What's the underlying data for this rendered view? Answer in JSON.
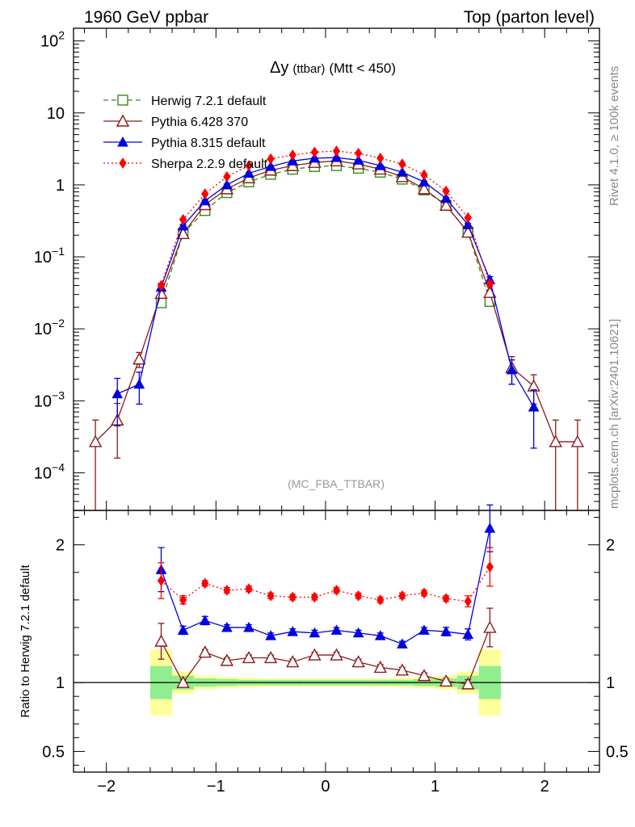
{
  "header": {
    "left": "1960 GeV ppbar",
    "right": "Top (parton level)"
  },
  "side_texts": {
    "rivet": "Rivet 4.1.0, ≥ 100k events",
    "mcplots": "mcplots.cern.ch [arXiv:2401.10621]"
  },
  "colors": {
    "herwig": "#3a8a1a",
    "pythia6": "#8b1a1a",
    "pythia8": "#0000e0",
    "sherpa": "#ff0000",
    "band_inner": "#90ee90",
    "band_outer": "#ffff99"
  },
  "chart_data": [
    {
      "type": "scatter",
      "panel": "main",
      "title_symbol": "Δy",
      "title_small": "(ttbar)",
      "title_rest": "(Mtt < 450)",
      "watermark": "(MC_FBA_TTBAR)",
      "xlim": [
        -2.3,
        2.5
      ],
      "ylim": [
        3e-05,
        150
      ],
      "yscale": "log",
      "x_ticks": [
        -2,
        -1,
        0,
        1,
        2
      ],
      "x_tick_labels": [
        "−2",
        "−1",
        "0",
        "1",
        "2"
      ],
      "y_tick_labels": [
        {
          "value": 100,
          "base": "10",
          "exp": "2"
        },
        {
          "value": 10,
          "base": "10",
          "exp": ""
        },
        {
          "value": 1,
          "base": "1",
          "exp": ""
        },
        {
          "value": 0.1,
          "base": "10",
          "exp": "−1"
        },
        {
          "value": 0.01,
          "base": "10",
          "exp": "−2"
        },
        {
          "value": 0.001,
          "base": "10",
          "exp": "−3"
        },
        {
          "value": 0.0001,
          "base": "10",
          "exp": "−4"
        }
      ],
      "legend_position": "top-left",
      "series": [
        {
          "key": "herwig",
          "name": "Herwig 7.2.1 default",
          "marker": "open-square",
          "dash": "dashed",
          "x": [
            -1.5,
            -1.3,
            -1.1,
            -0.9,
            -0.7,
            -0.5,
            -0.3,
            -0.1,
            0.1,
            0.3,
            0.5,
            0.7,
            0.9,
            1.1,
            1.3,
            1.5
          ],
          "y": [
            0.023,
            0.21,
            0.44,
            0.78,
            1.1,
            1.4,
            1.65,
            1.8,
            1.85,
            1.7,
            1.5,
            1.2,
            0.85,
            0.52,
            0.22,
            0.024
          ],
          "err": [
            0,
            0,
            0,
            0,
            0,
            0,
            0,
            0,
            0,
            0,
            0,
            0,
            0,
            0,
            0,
            0
          ]
        },
        {
          "key": "pythia6",
          "name": "Pythia 6.428 370",
          "marker": "open-triangle",
          "dash": "solid",
          "x": [
            -2.1,
            -1.9,
            -1.7,
            -1.5,
            -1.3,
            -1.1,
            -0.9,
            -0.7,
            -0.5,
            -0.3,
            -0.1,
            0.1,
            0.3,
            0.5,
            0.7,
            0.9,
            1.1,
            1.3,
            1.5,
            1.7,
            1.9,
            2.1,
            2.3
          ],
          "y": [
            0.00027,
            0.00054,
            0.0038,
            0.031,
            0.21,
            0.53,
            0.88,
            1.25,
            1.6,
            1.85,
            2.05,
            2.15,
            1.95,
            1.65,
            1.3,
            0.88,
            0.52,
            0.22,
            0.032,
            0.0029,
            0.0016,
            0.00027,
            0.00027
          ],
          "err": [
            0.00027,
            0.00038,
            0.0009,
            0.003,
            0.01,
            0.015,
            0.02,
            0.025,
            0.03,
            0.03,
            0.03,
            0.03,
            0.03,
            0.03,
            0.025,
            0.02,
            0.015,
            0.01,
            0.003,
            0.0012,
            0.0007,
            0.00027,
            0.00027
          ]
        },
        {
          "key": "pythia8",
          "name": "Pythia 8.315 default",
          "marker": "filled-triangle",
          "dash": "solid",
          "x": [
            -1.9,
            -1.7,
            -1.5,
            -1.3,
            -1.1,
            -0.9,
            -0.7,
            -0.5,
            -0.3,
            -0.1,
            0.1,
            0.3,
            0.5,
            0.7,
            0.9,
            1.1,
            1.3,
            1.5,
            1.7,
            1.9
          ],
          "y": [
            0.00125,
            0.0017,
            0.038,
            0.27,
            0.6,
            1.0,
            1.45,
            1.8,
            2.15,
            2.35,
            2.4,
            2.2,
            1.85,
            1.5,
            1.1,
            0.65,
            0.28,
            0.048,
            0.0027,
            0.00082
          ],
          "err": [
            0.0008,
            0.0008,
            0.004,
            0.012,
            0.018,
            0.025,
            0.03,
            0.03,
            0.035,
            0.035,
            0.035,
            0.035,
            0.03,
            0.03,
            0.025,
            0.018,
            0.012,
            0.005,
            0.001,
            0.0006
          ]
        },
        {
          "key": "sherpa",
          "name": "Sherpa 2.2.9 default",
          "marker": "filled-diamond",
          "dash": "dotted",
          "x": [
            -1.5,
            -1.3,
            -1.1,
            -0.9,
            -0.7,
            -0.5,
            -0.3,
            -0.1,
            0.1,
            0.3,
            0.5,
            0.7,
            0.9,
            1.1,
            1.3,
            1.5
          ],
          "y": [
            0.04,
            0.33,
            0.75,
            1.3,
            1.85,
            2.3,
            2.6,
            2.85,
            2.95,
            2.75,
            2.35,
            1.95,
            1.38,
            0.82,
            0.35,
            0.042
          ],
          "err": [
            0.003,
            0.01,
            0.015,
            0.02,
            0.025,
            0.03,
            0.03,
            0.03,
            0.03,
            0.03,
            0.03,
            0.025,
            0.02,
            0.015,
            0.01,
            0.003
          ]
        }
      ]
    },
    {
      "type": "scatter",
      "panel": "ratio",
      "ylabel": "Ratio to Herwig 7.2.1 default",
      "xlim": [
        -2.3,
        2.5
      ],
      "ylim": [
        0.35,
        2.25
      ],
      "reference_line": 1,
      "x_ticks": [
        -2,
        -1,
        0,
        1,
        2
      ],
      "x_tick_labels": [
        "−2",
        "−1",
        "0",
        "1",
        "2"
      ],
      "y_ticks": [
        0.5,
        1,
        2
      ],
      "y_tick_labels": [
        "0.5",
        "1",
        "2"
      ],
      "bands": {
        "x_edges": [
          -1.6,
          -1.4,
          -1.2,
          -1.0,
          -0.8,
          -0.6,
          -0.4,
          -0.2,
          0.0,
          0.2,
          0.4,
          0.6,
          0.8,
          1.0,
          1.2,
          1.4,
          1.6
        ],
        "inner": [
          0.12,
          0.05,
          0.03,
          0.025,
          0.02,
          0.02,
          0.02,
          0.02,
          0.02,
          0.02,
          0.02,
          0.02,
          0.025,
          0.03,
          0.05,
          0.12
        ],
        "outer": [
          0.24,
          0.08,
          0.05,
          0.04,
          0.035,
          0.03,
          0.03,
          0.03,
          0.03,
          0.03,
          0.03,
          0.035,
          0.04,
          0.05,
          0.08,
          0.24
        ]
      },
      "series": [
        {
          "key": "pythia6",
          "marker": "open-triangle",
          "dash": "solid",
          "x": [
            -1.5,
            -1.3,
            -1.1,
            -0.9,
            -0.7,
            -0.5,
            -0.3,
            -0.1,
            0.1,
            0.3,
            0.5,
            0.7,
            0.9,
            1.1,
            1.3,
            1.5
          ],
          "y": [
            1.3,
            1.0,
            1.22,
            1.16,
            1.18,
            1.18,
            1.15,
            1.2,
            1.2,
            1.15,
            1.11,
            1.09,
            1.05,
            1.01,
            0.99,
            1.4
          ],
          "err": [
            0.13,
            0.02,
            0.02,
            0.02,
            0.02,
            0.02,
            0.02,
            0.02,
            0.02,
            0.02,
            0.02,
            0.02,
            0.02,
            0.02,
            0.03,
            0.14
          ]
        },
        {
          "key": "pythia8",
          "marker": "filled-triangle",
          "dash": "solid",
          "x": [
            -1.5,
            -1.3,
            -1.1,
            -0.9,
            -0.7,
            -0.5,
            -0.3,
            -0.1,
            0.1,
            0.3,
            0.5,
            0.7,
            0.9,
            1.1,
            1.3,
            1.5
          ],
          "y": [
            1.82,
            1.38,
            1.45,
            1.4,
            1.4,
            1.34,
            1.37,
            1.36,
            1.38,
            1.36,
            1.34,
            1.28,
            1.38,
            1.37,
            1.35,
            2.12
          ],
          "err": [
            0.16,
            0.03,
            0.03,
            0.02,
            0.02,
            0.02,
            0.02,
            0.02,
            0.02,
            0.02,
            0.02,
            0.02,
            0.02,
            0.03,
            0.04,
            0.17
          ]
        },
        {
          "key": "sherpa",
          "marker": "filled-diamond",
          "dash": "dotted",
          "x": [
            -1.5,
            -1.3,
            -1.1,
            -0.9,
            -0.7,
            -0.5,
            -0.3,
            -0.1,
            0.1,
            0.3,
            0.5,
            0.7,
            0.9,
            1.1,
            1.3,
            1.5
          ],
          "y": [
            1.74,
            1.6,
            1.72,
            1.67,
            1.68,
            1.63,
            1.62,
            1.62,
            1.67,
            1.63,
            1.6,
            1.63,
            1.65,
            1.61,
            1.59,
            1.84
          ],
          "err": [
            0.13,
            0.03,
            0.02,
            0.02,
            0.02,
            0.02,
            0.02,
            0.02,
            0.02,
            0.02,
            0.02,
            0.02,
            0.02,
            0.02,
            0.04,
            0.14
          ]
        }
      ]
    }
  ]
}
